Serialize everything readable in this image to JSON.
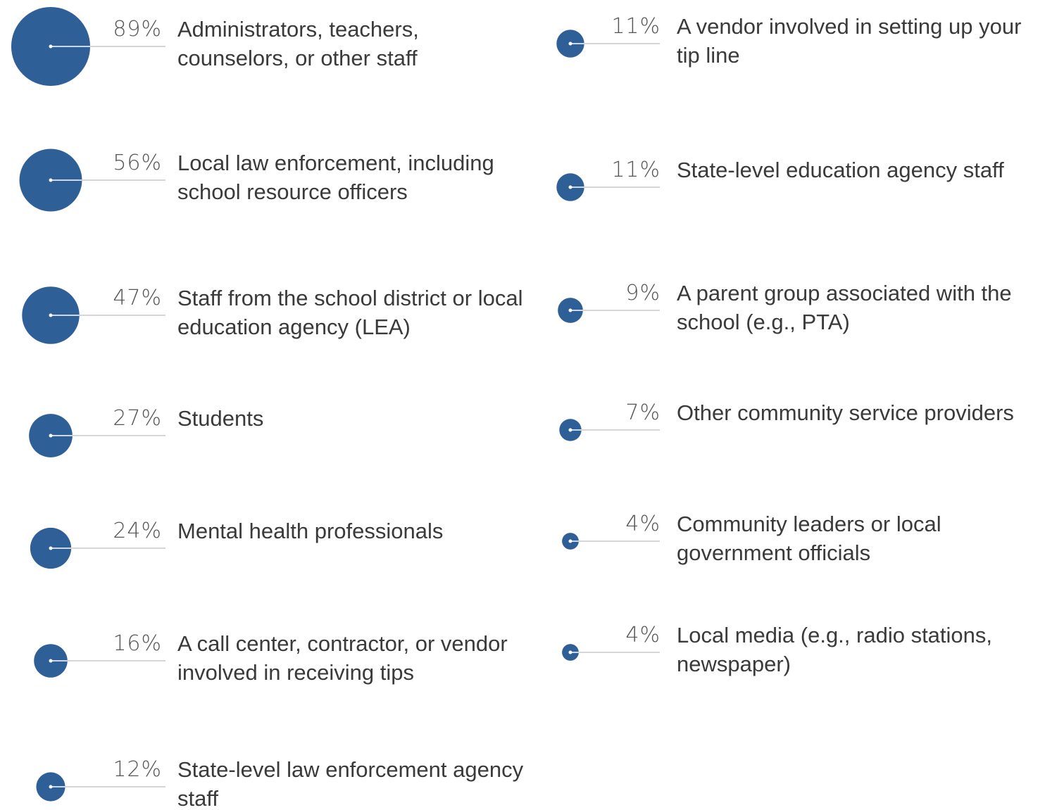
{
  "chart_data": {
    "type": "bubble",
    "color": "#2f5f97",
    "categories": [
      "Administrators, teachers, counselors, or other staff",
      "Local law enforcement, including school resource officers",
      "Staff from the school district or local education agency (LEA)",
      "Students",
      "Mental health professionals",
      "A call center, contractor, or vendor involved in receiving tips",
      "State-level law enforcement agency staff",
      "A vendor involved in setting up your tip line",
      "State-level education agency staff",
      "A parent group associated with the school (e.g., PTA)",
      "Other community service providers",
      "Community leaders or local government officials",
      "Local media (e.g., radio stations, newspaper)"
    ],
    "values": [
      89,
      56,
      47,
      27,
      24,
      16,
      12,
      11,
      11,
      9,
      7,
      4,
      4
    ],
    "value_labels": [
      "89%",
      "56%",
      "47%",
      "27%",
      "24%",
      "16%",
      "12%",
      "11%",
      "11%",
      "9%",
      "7%",
      "4%",
      "4%"
    ]
  }
}
